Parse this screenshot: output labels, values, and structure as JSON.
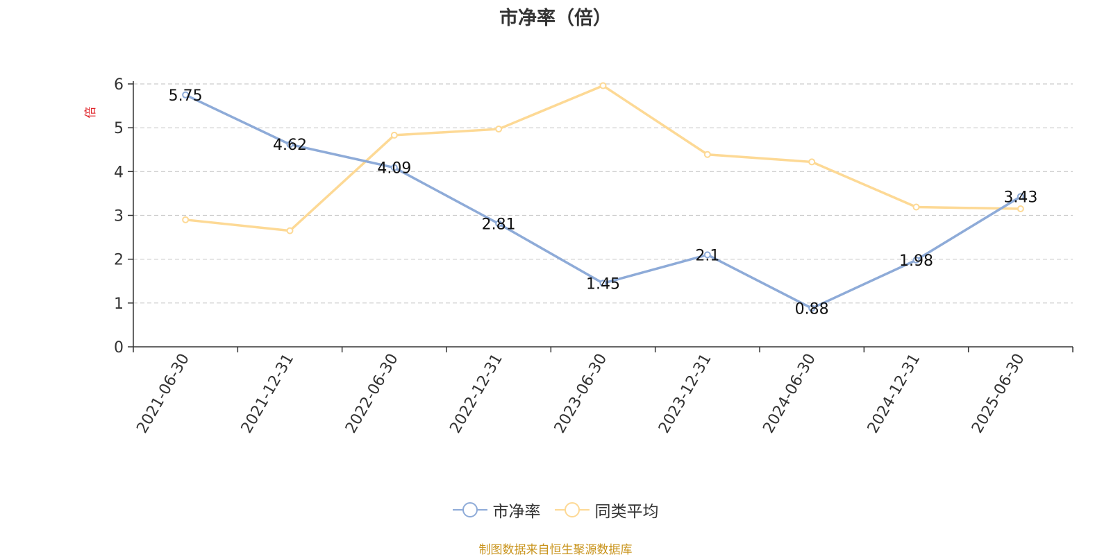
{
  "chart_data": {
    "type": "line",
    "title": "市净率（倍）",
    "ylabel": "倍",
    "categories": [
      "2021-06-30",
      "2021-12-31",
      "2022-06-30",
      "2022-12-31",
      "2023-06-30",
      "2023-12-31",
      "2024-06-30",
      "2024-12-31",
      "2025-06-30"
    ],
    "yticks": [
      "0",
      "1",
      "2",
      "3",
      "4",
      "5",
      "6"
    ],
    "ylim": [
      0,
      6
    ],
    "grid": true,
    "legend_position": "bottom",
    "series": [
      {
        "name": "市净率",
        "color": "#8eabd8",
        "values": [
          5.75,
          4.62,
          4.09,
          2.81,
          1.45,
          2.1,
          0.88,
          1.98,
          3.43
        ],
        "labels": [
          "5.75",
          "4.62",
          "4.09",
          "2.81",
          "1.45",
          "2.1",
          "0.88",
          "1.98",
          "3.43"
        ]
      },
      {
        "name": "同类平均",
        "color": "#fdd995",
        "values": [
          2.9,
          2.65,
          4.83,
          4.97,
          5.96,
          4.39,
          4.22,
          3.19,
          3.15
        ]
      }
    ]
  },
  "ylabel_color": "#e0242a",
  "source_note": "制图数据来自恒生聚源数据库",
  "source_note_color": "#c9941d"
}
